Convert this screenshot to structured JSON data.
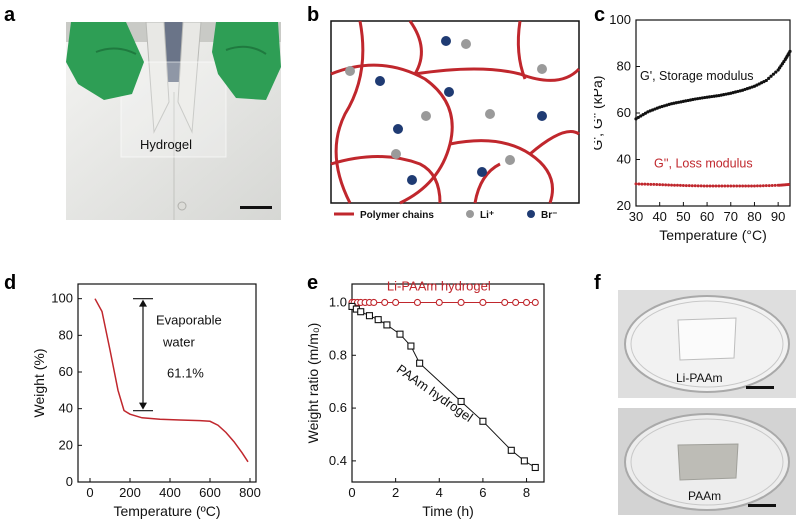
{
  "figure": {
    "panels": [
      {
        "label": "a",
        "photo_label": "Hydrogel"
      },
      {
        "label": "b",
        "legend": {
          "chains": "Polymer chains",
          "li": "Li⁺",
          "br": "Br⁻"
        }
      },
      {
        "label": "c"
      },
      {
        "label": "d"
      },
      {
        "label": "e"
      },
      {
        "label": "f",
        "top_label": "Li-PAAm",
        "bottom_label": "PAAm"
      }
    ],
    "colors": {
      "red": "#c0272d",
      "black": "#111111",
      "navy": "#1f3b73",
      "glove": "#2e9e55"
    }
  },
  "chart_data": [
    {
      "panel": "c",
      "type": "scatter",
      "xlabel": "Temperature (°C)",
      "ylabel": "G', G'' (kPa)",
      "xlim": [
        30,
        95
      ],
      "ylim": [
        20,
        100
      ],
      "xticks": [
        30,
        40,
        50,
        60,
        70,
        80,
        90
      ],
      "yticks": [
        20,
        40,
        60,
        80,
        100
      ],
      "series": [
        {
          "name": "G', Storage modulus",
          "x": [
            30,
            35,
            40,
            45,
            50,
            55,
            60,
            65,
            70,
            75,
            80,
            85,
            90,
            93,
            95
          ],
          "y": [
            57.5,
            60.5,
            62.5,
            64,
            65,
            66,
            66.8,
            67.5,
            68.5,
            69.8,
            71.5,
            74,
            78.5,
            83,
            86.5
          ]
        },
        {
          "name": "G'', Loss modulus",
          "x": [
            30,
            40,
            50,
            60,
            70,
            80,
            90,
            95
          ],
          "y": [
            29.5,
            29.2,
            28.8,
            28.6,
            28.6,
            28.6,
            28.9,
            29.3
          ]
        }
      ]
    },
    {
      "panel": "d",
      "type": "line",
      "xlabel": "Temperature (ºC)",
      "ylabel": "Weight (%)",
      "xlim": [
        -60,
        830
      ],
      "ylim": [
        0,
        108
      ],
      "xticks": [
        0,
        200,
        400,
        600,
        800
      ],
      "yticks": [
        0,
        20,
        40,
        60,
        80,
        100
      ],
      "series": [
        {
          "name": "",
          "x": [
            25,
            60,
            100,
            140,
            170,
            200,
            260,
            350,
            450,
            550,
            600,
            640,
            680,
            720,
            760,
            790
          ],
          "y": [
            100,
            93,
            72,
            50,
            39,
            37,
            35,
            34.2,
            33.8,
            33.5,
            33.1,
            31,
            27,
            22,
            16,
            11
          ]
        }
      ],
      "annotations": {
        "text1": "Evaporable",
        "text2": "water",
        "value": "61.1%",
        "arrow_top": 100,
        "arrow_bottom": 38.9
      }
    },
    {
      "panel": "e",
      "type": "line",
      "xlabel": "Time (h)",
      "ylabel": "Weight ratio (m/m₀)",
      "xlim": [
        0,
        8.8
      ],
      "ylim": [
        0.32,
        1.07
      ],
      "xticks": [
        0,
        2,
        4,
        6,
        8
      ],
      "yticks": [
        0.4,
        0.6,
        0.8,
        1.0
      ],
      "series": [
        {
          "name": "Li-PAAm hydrogel",
          "marker": "circle",
          "x": [
            0,
            0.1,
            0.25,
            0.4,
            0.6,
            0.8,
            1.0,
            1.5,
            2.0,
            3.0,
            4.0,
            5.0,
            6.0,
            7.0,
            7.5,
            8.0,
            8.4
          ],
          "y": [
            1.0,
            1.0,
            1.0,
            1.0,
            1.0,
            1.0,
            1.0,
            1.0,
            1.0,
            1.0,
            1.0,
            1.0,
            1.0,
            1.0,
            1.0,
            1.0,
            1.0
          ]
        },
        {
          "name": "PAAm hydrogel",
          "marker": "square",
          "x": [
            0,
            0.2,
            0.4,
            0.8,
            1.2,
            1.6,
            2.2,
            2.7,
            3.1,
            5.0,
            6.0,
            7.3,
            7.9,
            8.4
          ],
          "y": [
            0.985,
            0.975,
            0.965,
            0.95,
            0.935,
            0.915,
            0.88,
            0.835,
            0.77,
            0.625,
            0.55,
            0.44,
            0.4,
            0.375
          ]
        }
      ]
    }
  ]
}
